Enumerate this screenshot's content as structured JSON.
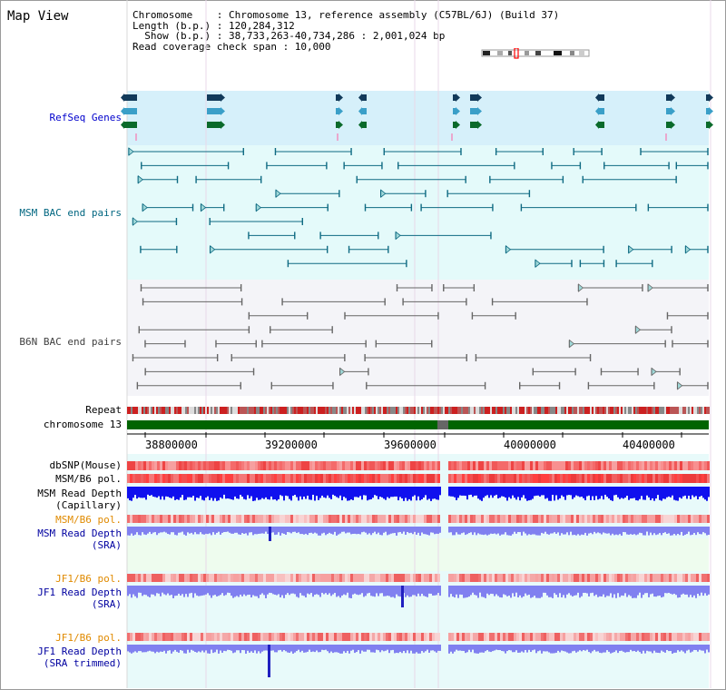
{
  "title": "Map View",
  "info": {
    "line1": "Chromosome    : Chromosome 13, reference assembly (C57BL/6J) (Build 37)",
    "line2": "Length (b.p.) : 120,284,312",
    "line3": "Show (b.p.) : 38,733,263-40,734,286 : 2,001,024 bp",
    "line4": "Read coverage check span : 10,000"
  },
  "tracks": {
    "refseq": "RefSeq Genes",
    "msm_bac": "MSM BAC end pairs",
    "b6n_bac": "B6N BAC end pairs",
    "repeat": "Repeat",
    "chromosome": "chromosome 13",
    "dbsnp": "dbSNP(Mouse)",
    "msm_pol1": "MSM/B6 pol.",
    "msm_depth_cap1": "MSM Read Depth",
    "msm_depth_cap2": "(Capillary)",
    "msm_pol2": "MSM/B6 pol.",
    "msm_depth_sra1": "MSM Read Depth",
    "msm_depth_sra2": "(SRA)",
    "jf1_pol1": "JF1/B6 pol.",
    "jf1_depth1": "JF1 Read Depth",
    "jf1_depth2": "(SRA)",
    "jf1_pol2": "JF1/B6 pol.",
    "jf1_trim1": "JF1 Read Depth",
    "jf1_trim2": "(SRA trimmed)"
  },
  "axis": {
    "ticks": [
      "38800000",
      "39200000",
      "39600000",
      "40000000",
      "40400000"
    ]
  },
  "colors": {
    "refseq_label": "#0000cc",
    "msm_label": "#006680",
    "b6n_label": "#404040",
    "pol_label": "#e08a00",
    "depth_label": "#0000a0",
    "chrom": "#006400",
    "depth_dark": "#1010ee",
    "depth_light": "#8080f0"
  }
}
